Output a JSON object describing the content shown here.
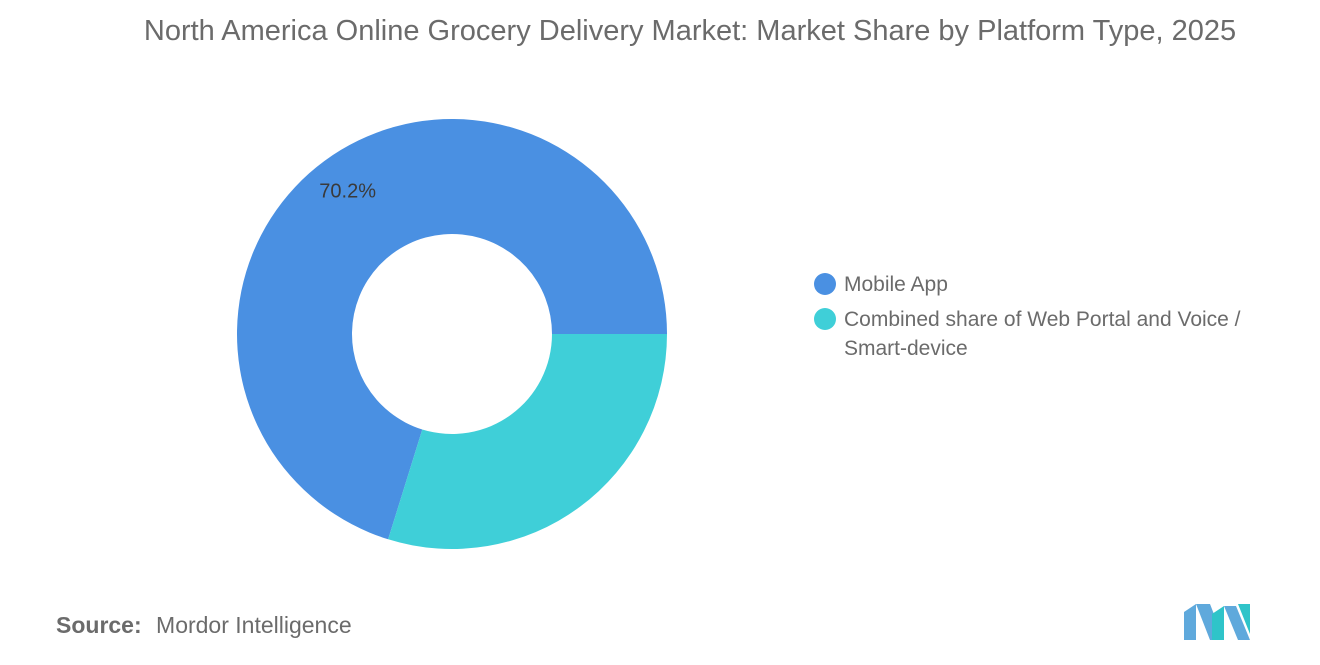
{
  "chart_data": {
    "type": "pie",
    "donut": true,
    "title": "North America Online Grocery Delivery Market: Market Share by Platform Type, 2025",
    "categories": [
      "Mobile App",
      "Combined share of Web Portal and Voice / Smart-device"
    ],
    "values": [
      70.2,
      29.8
    ],
    "unit": "%",
    "colors": [
      "#4a90e2",
      "#3fcfd8"
    ],
    "data_labels": [
      "70.2%",
      ""
    ],
    "legend_position": "right"
  },
  "legend": {
    "items": [
      {
        "label": "Mobile App",
        "color": "#4a90e2"
      },
      {
        "label": "Combined share of Web Portal and Voice / Smart-device",
        "color": "#3fcfd8"
      }
    ]
  },
  "source": {
    "prefix": "Source:",
    "text": "Mordor Intelligence"
  },
  "logo": {
    "icon": "mordor-intelligence-logo-icon",
    "colors": [
      "#5fa9dc",
      "#2fc4c9"
    ]
  }
}
